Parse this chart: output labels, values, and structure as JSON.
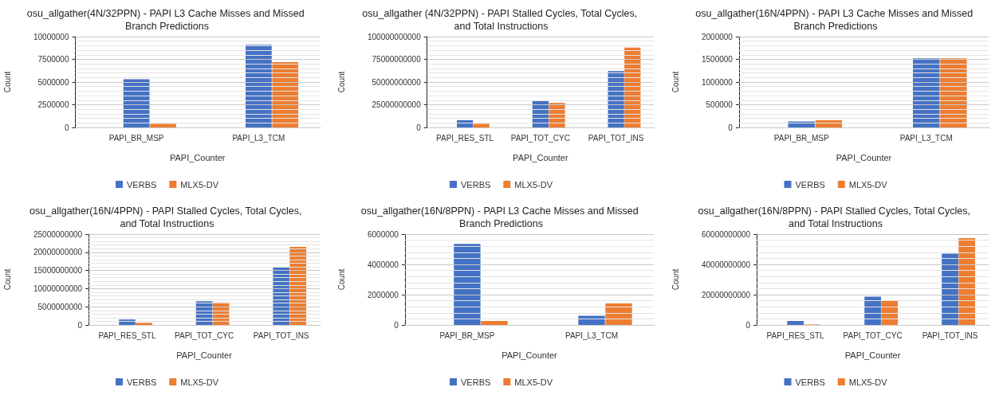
{
  "chart_data": [
    {
      "type": "bar",
      "title": "osu_allgather(4N/32PPN) - PAPI L3 Cache Misses and Missed Branch Predictions",
      "xlabel": "PAPI_Counter",
      "ylabel": "Count",
      "categories": [
        "PAPI_BR_MSP",
        "PAPI_L3_TCM"
      ],
      "series": [
        {
          "name": "VERBS",
          "color": "#4472c4",
          "values": [
            5300000,
            9100000
          ]
        },
        {
          "name": "MLX5-DV",
          "color": "#ed7d31",
          "values": [
            400000,
            7200000
          ]
        }
      ],
      "ylim": [
        0,
        10000000
      ],
      "yticks": [
        0,
        2500000,
        5000000,
        7500000,
        10000000
      ],
      "grid": "y",
      "legend": "bottom"
    },
    {
      "type": "bar",
      "title": "osu_allgather (4N/32PPN) - PAPI Stalled Cycles, Total Cycles, and Total Instructions",
      "xlabel": "PAPI_Counter",
      "ylabel": "Count",
      "categories": [
        "PAPI_RES_STL",
        "PAPI_TOT_CYC",
        "PAPI_TOT_INS"
      ],
      "series": [
        {
          "name": "VERBS",
          "color": "#4472c4",
          "values": [
            8000000000,
            29000000000,
            62000000000
          ]
        },
        {
          "name": "MLX5-DV",
          "color": "#ed7d31",
          "values": [
            4000000000,
            27000000000,
            88000000000
          ]
        }
      ],
      "ylim": [
        0,
        100000000000
      ],
      "yticks": [
        0,
        25000000000,
        50000000000,
        75000000000,
        100000000000
      ],
      "grid": "y",
      "legend": "bottom"
    },
    {
      "type": "bar",
      "title": "osu_allgather(16N/4PPN) - PAPI L3 Cache Misses and Missed Branch Predictions",
      "xlabel": "PAPI_Counter",
      "ylabel": "Count",
      "categories": [
        "PAPI_BR_MSP",
        "PAPI_L3_TCM"
      ],
      "series": [
        {
          "name": "VERBS",
          "color": "#4472c4",
          "values": [
            130000,
            1520000
          ]
        },
        {
          "name": "MLX5-DV",
          "color": "#ed7d31",
          "values": [
            160000,
            1520000
          ]
        }
      ],
      "ylim": [
        0,
        2000000
      ],
      "yticks": [
        0,
        500000,
        1000000,
        1500000,
        2000000
      ],
      "grid": "y",
      "legend": "bottom"
    },
    {
      "type": "bar",
      "title": "osu_allgather(16N/4PPN) - PAPI Stalled Cycles, Total Cycles, and Total Instructions",
      "xlabel": "PAPI_Counter",
      "ylabel": "Count",
      "categories": [
        "PAPI_RES_STL",
        "PAPI_TOT_CYC",
        "PAPI_TOT_INS"
      ],
      "series": [
        {
          "name": "VERBS",
          "color": "#4472c4",
          "values": [
            1500000000,
            6500000000,
            15900000000
          ]
        },
        {
          "name": "MLX5-DV",
          "color": "#ed7d31",
          "values": [
            600000000,
            6200000000,
            21500000000
          ]
        }
      ],
      "ylim": [
        0,
        25000000000
      ],
      "yticks": [
        0,
        5000000000,
        10000000000,
        15000000000,
        20000000000,
        25000000000
      ],
      "grid": "y",
      "legend": "bottom"
    },
    {
      "type": "bar",
      "title": "osu_allgather(16N/8PPN) - PAPI L3 Cache Misses and Missed Branch Predictions",
      "xlabel": "PAPI_Counter",
      "ylabel": "Count",
      "categories": [
        "PAPI_BR_MSP",
        "PAPI_L3_TCM"
      ],
      "series": [
        {
          "name": "VERBS",
          "color": "#4472c4",
          "values": [
            5350000,
            600000
          ]
        },
        {
          "name": "MLX5-DV",
          "color": "#ed7d31",
          "values": [
            260000,
            1420000
          ]
        }
      ],
      "ylim": [
        0,
        6000000
      ],
      "yticks": [
        0,
        2000000,
        4000000,
        6000000
      ],
      "grid": "y",
      "legend": "bottom"
    },
    {
      "type": "bar",
      "title": "osu_allgather(16N/8PPN) - PAPI Stalled Cycles, Total Cycles, and Total Instructions",
      "xlabel": "PAPI_Counter",
      "ylabel": "Count",
      "categories": [
        "PAPI_RES_STL",
        "PAPI_TOT_CYC",
        "PAPI_TOT_INS"
      ],
      "series": [
        {
          "name": "VERBS",
          "color": "#4472c4",
          "values": [
            2600000000,
            18700000000,
            47100000000
          ]
        },
        {
          "name": "MLX5-DV",
          "color": "#ed7d31",
          "values": [
            300000000,
            15800000000,
            57400000000
          ]
        }
      ],
      "ylim": [
        0,
        60000000000
      ],
      "yticks": [
        0,
        20000000000,
        40000000000,
        60000000000
      ],
      "grid": "y",
      "legend": "bottom"
    }
  ]
}
